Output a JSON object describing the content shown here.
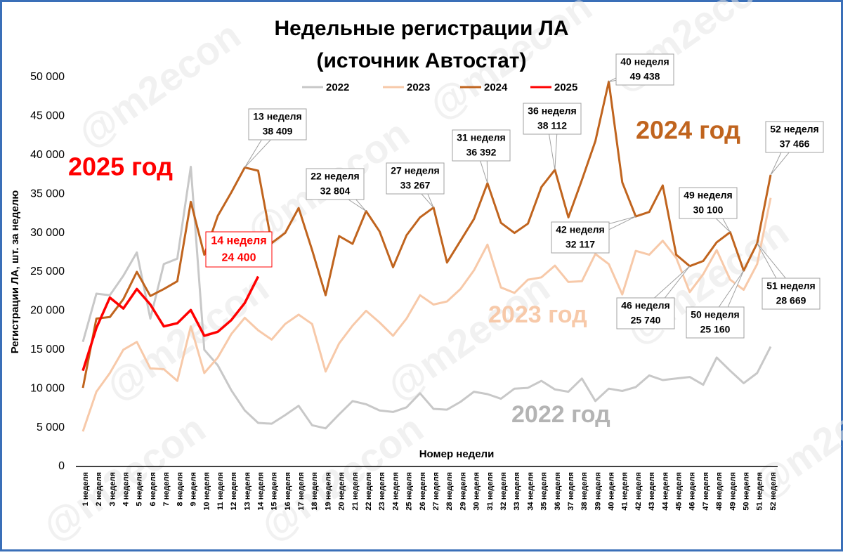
{
  "chart_data": {
    "type": "line",
    "title": [
      "Недельные регистрации ЛА",
      "(источник Автостат)"
    ],
    "watermark": "@m2econ",
    "y_label": "Регистрации ЛА, шт. за неделю",
    "x_label": "Номер недели",
    "categories": [
      "1 неделя",
      "2 неделя",
      "3 неделя",
      "4 неделя",
      "5 неделя",
      "6 неделя",
      "7 неделя",
      "8 неделя",
      "9 неделя",
      "10 неделя",
      "11 неделя",
      "12 неделя",
      "13 неделя",
      "14 неделя",
      "15 неделя",
      "16 неделя",
      "17 неделя",
      "18 неделя",
      "19 неделя",
      "20 неделя",
      "21 неделя",
      "22 неделя",
      "23 неделя",
      "24 неделя",
      "25 неделя",
      "26 неделя",
      "27 неделя",
      "28 неделя",
      "29 неделя",
      "30 неделя",
      "31 неделя",
      "32 неделя",
      "33 неделя",
      "34 неделя",
      "35 неделя",
      "36 неделя",
      "37 неделя",
      "38 неделя",
      "39 неделя",
      "40 неделя",
      "41 неделя",
      "42 неделя",
      "43 неделя",
      "44 неделя",
      "45 неделя",
      "46 неделя",
      "47 неделя",
      "48 неделя",
      "49 неделя",
      "50 неделя",
      "51 неделя",
      "52 неделя"
    ],
    "ylim": [
      0,
      50000
    ],
    "yticks": [
      0,
      {
        "value": 5000,
        "label": "5 000"
      },
      {
        "value": 10000,
        "label": "10 000"
      },
      {
        "value": 15000,
        "label": "15 000"
      },
      {
        "value": 20000,
        "label": "20 000"
      },
      {
        "value": 25000,
        "label": "25 000"
      },
      {
        "value": 30000,
        "label": "30 000"
      },
      {
        "value": 35000,
        "label": "35 000"
      },
      {
        "value": 40000,
        "label": "40 000"
      },
      {
        "value": 45000,
        "label": "45 000"
      },
      {
        "value": 50000,
        "label": "50 000"
      }
    ],
    "grid": false,
    "legend": "top",
    "series": [
      {
        "name": "2022",
        "color": "#c8c8c8",
        "values": [
          16000,
          22200,
          22000,
          24500,
          27500,
          19000,
          26000,
          26700,
          38500,
          15000,
          13000,
          9800,
          7200,
          5600,
          5500,
          6600,
          7800,
          5300,
          4900,
          6700,
          8400,
          8000,
          7200,
          7000,
          7600,
          9400,
          7400,
          7300,
          8300,
          9600,
          9300,
          8700,
          10000,
          10100,
          11000,
          9900,
          9600,
          11300,
          8400,
          10000,
          9700,
          10200,
          11700,
          11100,
          11300,
          11500,
          10500,
          14000,
          12300,
          10700,
          12000,
          15400
        ]
      },
      {
        "name": "2023",
        "color": "#f7c9a9",
        "values": [
          4500,
          9600,
          12000,
          15000,
          16000,
          12600,
          12500,
          11000,
          18000,
          12000,
          14000,
          17000,
          19100,
          17500,
          16300,
          18300,
          19500,
          18300,
          12200,
          15800,
          18100,
          20000,
          18500,
          16800,
          19000,
          22000,
          20800,
          21200,
          22800,
          25200,
          28500,
          23000,
          22300,
          24000,
          24300,
          25800,
          23700,
          23800,
          27300,
          26000,
          22100,
          27700,
          27200,
          29000,
          26800,
          22400,
          24700,
          27800,
          24000,
          22700,
          26000,
          34500
        ]
      },
      {
        "name": "2024",
        "color": "#c0641e",
        "values": [
          10100,
          19000,
          19200,
          21500,
          25000,
          21900,
          22800,
          23800,
          34000,
          27200,
          32200,
          35200,
          38409,
          38000,
          28700,
          30000,
          33200,
          27800,
          22000,
          29600,
          28600,
          32804,
          30200,
          25600,
          29700,
          32000,
          33267,
          26200,
          29000,
          31800,
          36392,
          31300,
          30000,
          31200,
          35900,
          38112,
          32000,
          36800,
          41800,
          49438,
          36500,
          32117,
          32700,
          36100,
          27200,
          25740,
          26400,
          28800,
          30100,
          25160,
          28669,
          37466
        ]
      },
      {
        "name": "2025",
        "color": "#ff0000",
        "values": [
          12300,
          17800,
          21700,
          20300,
          22800,
          20800,
          18000,
          18400,
          20100,
          16800,
          17300,
          18800,
          21000,
          24400,
          null,
          null,
          null,
          null,
          null,
          null,
          null,
          null,
          null,
          null,
          null,
          null,
          null,
          null,
          null,
          null,
          null,
          null,
          null,
          null,
          null,
          null,
          null,
          null,
          null,
          null,
          null,
          null,
          null,
          null,
          null,
          null,
          null,
          null,
          null,
          null,
          null,
          null
        ]
      }
    ],
    "callouts": [
      {
        "series": 2,
        "index": 12,
        "week": "13 неделя",
        "value_label": "38 409"
      },
      {
        "series": 2,
        "index": 21,
        "week": "22 неделя",
        "value_label": "32 804"
      },
      {
        "series": 2,
        "index": 26,
        "week": "27 неделя",
        "value_label": "33 267"
      },
      {
        "series": 2,
        "index": 30,
        "week": "31 неделя",
        "value_label": "36 392"
      },
      {
        "series": 2,
        "index": 35,
        "week": "36 неделя",
        "value_label": "38 112"
      },
      {
        "series": 2,
        "index": 39,
        "week": "40 неделя",
        "value_label": "49 438"
      },
      {
        "series": 2,
        "index": 41,
        "week": "42 неделя",
        "value_label": "32 117"
      },
      {
        "series": 2,
        "index": 45,
        "week": "46 неделя",
        "value_label": "25 740"
      },
      {
        "series": 2,
        "index": 48,
        "week": "49 неделя",
        "value_label": "30 100"
      },
      {
        "series": 2,
        "index": 49,
        "week": "50 неделя",
        "value_label": "25 160"
      },
      {
        "series": 2,
        "index": 50,
        "week": "51 неделя",
        "value_label": "28 669"
      },
      {
        "series": 2,
        "index": 51,
        "week": "52 неделя",
        "value_label": "37 466"
      },
      {
        "series": 3,
        "index": 13,
        "week": "14 неделя",
        "value_label": "24 400"
      }
    ],
    "year_labels": [
      {
        "text": "2025 год",
        "color": "#ff0000"
      },
      {
        "text": "2024 год",
        "color": "#c0641e"
      },
      {
        "text": "2023 год",
        "color": "#f7c9a9"
      },
      {
        "text": "2022 год",
        "color": "#b4b4b4"
      }
    ]
  }
}
